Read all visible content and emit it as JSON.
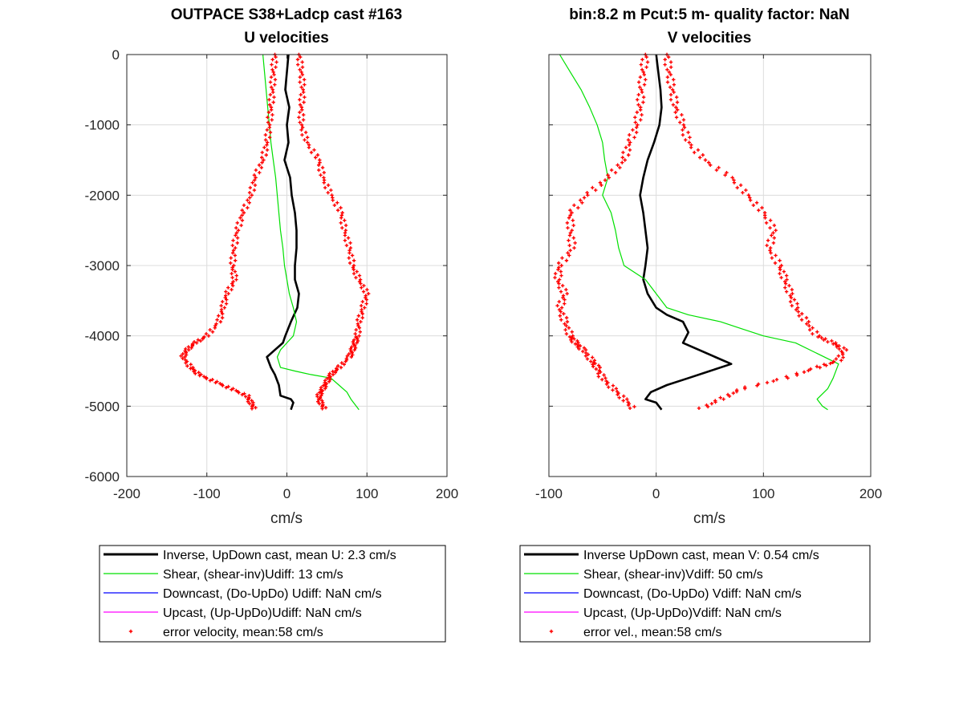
{
  "chart_data": [
    {
      "type": "line",
      "title": [
        "OUTPACE S38+Ladcp cast #163",
        "U velocities"
      ],
      "xlabel": "cm/s",
      "ylabel": "",
      "xlim": [
        -200,
        200
      ],
      "ylim": [
        -6000,
        0
      ],
      "xticks": [
        -200,
        -100,
        0,
        100,
        200
      ],
      "yticks": [
        0,
        -1000,
        -2000,
        -3000,
        -4000,
        -5000,
        -6000
      ],
      "ytick_labels": [
        "0",
        "-1000",
        "-2000",
        "-3000",
        "-4000",
        "-5000",
        "-6000"
      ],
      "grid": true,
      "legend_position": "below",
      "series": [
        {
          "name": "Inverse, UpDown cast, mean U:  2.3 cm/s",
          "color": "#000000",
          "style": "line-thick",
          "x": [
            2,
            0,
            -2,
            3,
            0,
            2,
            -3,
            4,
            6,
            10,
            12,
            12,
            10,
            10,
            15,
            13,
            5,
            -2,
            -5,
            -15,
            -25,
            -20,
            -15,
            -10,
            -8,
            5,
            8,
            5
          ],
          "y": [
            0,
            -250,
            -500,
            -750,
            -1000,
            -1250,
            -1500,
            -1750,
            -2000,
            -2250,
            -2500,
            -2750,
            -3000,
            -3200,
            -3400,
            -3600,
            -3800,
            -4000,
            -4100,
            -4200,
            -4300,
            -4450,
            -4550,
            -4700,
            -4850,
            -4900,
            -4950,
            -5050
          ]
        },
        {
          "name": "Shear, (shear-inv)Udiff:  13 cm/s",
          "color": "#00e000",
          "style": "line",
          "x": [
            -30,
            -28,
            -26,
            -24,
            -22,
            -20,
            -17,
            -14,
            -12,
            -10,
            -8,
            -5,
            -3,
            0,
            3,
            8,
            12,
            8,
            0,
            -8,
            -12,
            -8,
            10,
            30,
            55,
            65,
            75,
            80,
            90
          ],
          "y": [
            0,
            -250,
            -500,
            -750,
            -1000,
            -1250,
            -1500,
            -1750,
            -2000,
            -2250,
            -2500,
            -2750,
            -3000,
            -3200,
            -3400,
            -3600,
            -3800,
            -4000,
            -4100,
            -4200,
            -4300,
            -4450,
            -4500,
            -4550,
            -4600,
            -4700,
            -4800,
            -4900,
            -5050
          ]
        },
        {
          "name": "Downcast, (Do-UpDo) Udiff:  NaN cm/s",
          "color": "#0000ff",
          "style": "line",
          "x": [],
          "y": []
        },
        {
          "name": "Upcast, (Up-UpDo)Udiff:  NaN cm/s",
          "color": "#ff00ff",
          "style": "line",
          "x": [],
          "y": []
        },
        {
          "name": "error velocity, mean:58 cm/s",
          "color": "#ff0000",
          "style": "markers",
          "x_left": [
            -15,
            -17,
            -18,
            -20,
            -22,
            -25,
            -30,
            -40,
            -45,
            -55,
            -62,
            -66,
            -68,
            -65,
            -75,
            -80,
            -85,
            -100,
            -115,
            -125,
            -130,
            -120,
            -110,
            -90,
            -70,
            -50,
            -45,
            -40
          ],
          "x_right": [
            15,
            18,
            20,
            18,
            18,
            25,
            40,
            45,
            55,
            68,
            72,
            78,
            82,
            90,
            100,
            95,
            90,
            88,
            85,
            82,
            78,
            65,
            55,
            50,
            45,
            40,
            42,
            48
          ],
          "y": [
            0,
            -250,
            -500,
            -750,
            -1000,
            -1250,
            -1500,
            -1750,
            -2000,
            -2250,
            -2500,
            -2750,
            -3000,
            -3200,
            -3400,
            -3600,
            -3800,
            -4000,
            -4100,
            -4200,
            -4300,
            -4450,
            -4550,
            -4650,
            -4750,
            -4850,
            -4950,
            -5050
          ]
        }
      ]
    },
    {
      "type": "line",
      "title": [
        "bin:8.2 m  Pcut:5 m- quality factor:  NaN",
        "V velocities"
      ],
      "xlabel": "cm/s",
      "ylabel": "",
      "xlim": [
        -100,
        200
      ],
      "ylim": [
        -6000,
        0
      ],
      "xticks": [
        -100,
        0,
        100,
        200
      ],
      "yticks": [
        0,
        -1000,
        -2000,
        -3000,
        -4000,
        -5000,
        -6000
      ],
      "grid": true,
      "legend_position": "below",
      "series": [
        {
          "name": "Inverse UpDown cast, mean V:  0.54 cm/s",
          "color": "#000000",
          "style": "line-thick",
          "x": [
            0,
            2,
            4,
            5,
            3,
            -2,
            -8,
            -12,
            -15,
            -12,
            -10,
            -8,
            -10,
            -12,
            -8,
            0,
            10,
            25,
            30,
            25,
            40,
            55,
            70,
            50,
            30,
            10,
            -5,
            -10,
            0,
            5
          ],
          "y": [
            0,
            -250,
            -500,
            -750,
            -1000,
            -1250,
            -1500,
            -1750,
            -2000,
            -2250,
            -2500,
            -2750,
            -3000,
            -3200,
            -3400,
            -3600,
            -3700,
            -3800,
            -3950,
            -4100,
            -4200,
            -4300,
            -4400,
            -4500,
            -4600,
            -4700,
            -4800,
            -4900,
            -4950,
            -5050
          ]
        },
        {
          "name": "Shear, (shear-inv)Vdiff:  50 cm/s",
          "color": "#00e000",
          "style": "line",
          "x": [
            -90,
            -80,
            -70,
            -62,
            -55,
            -50,
            -48,
            -45,
            -50,
            -42,
            -38,
            -35,
            -30,
            -10,
            0,
            10,
            30,
            60,
            80,
            100,
            130,
            150,
            170,
            165,
            160,
            150,
            155,
            160
          ],
          "y": [
            0,
            -250,
            -500,
            -750,
            -1000,
            -1250,
            -1500,
            -1750,
            -2000,
            -2250,
            -2500,
            -2750,
            -3000,
            -3200,
            -3400,
            -3600,
            -3700,
            -3800,
            -3900,
            -4000,
            -4100,
            -4250,
            -4400,
            -4600,
            -4750,
            -4900,
            -5000,
            -5050
          ]
        },
        {
          "name": "Downcast, (Do-UpDo) Vdiff:  NaN cm/s",
          "color": "#0000ff",
          "style": "line",
          "x": [],
          "y": []
        },
        {
          "name": "Upcast, (Up-UpDo)Vdiff:  NaN cm/s",
          "color": "#ff00ff",
          "style": "line",
          "x": [],
          "y": []
        },
        {
          "name": "error vel., mean:58 cm/s",
          "color": "#ff0000",
          "style": "markers",
          "x_left": [
            -10,
            -12,
            -14,
            -15,
            -18,
            -25,
            -30,
            -45,
            -65,
            -80,
            -80,
            -78,
            -90,
            -92,
            -85,
            -90,
            -85,
            -80,
            -75,
            -68,
            -60,
            -55,
            -50,
            -40,
            -30,
            -20
          ],
          "x_right": [
            10,
            12,
            15,
            18,
            25,
            30,
            45,
            70,
            85,
            100,
            110,
            105,
            115,
            120,
            125,
            130,
            140,
            150,
            165,
            175,
            170,
            150,
            120,
            80,
            60,
            40
          ],
          "y": [
            0,
            -250,
            -500,
            -750,
            -1000,
            -1250,
            -1500,
            -1750,
            -2000,
            -2250,
            -2500,
            -2750,
            -3000,
            -3200,
            -3400,
            -3600,
            -3800,
            -4000,
            -4100,
            -4200,
            -4350,
            -4450,
            -4600,
            -4750,
            -4900,
            -5050
          ]
        }
      ]
    }
  ]
}
